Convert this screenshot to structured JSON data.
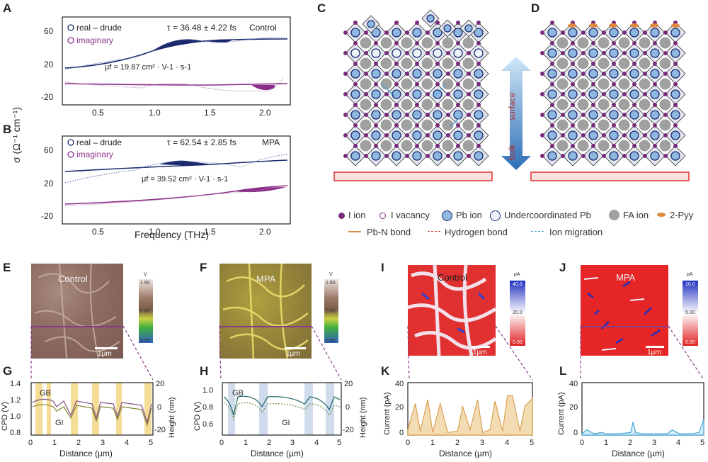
{
  "panels": {
    "A": {
      "letter": "A",
      "legend_real": "real – drude",
      "legend_imag": "imaginary",
      "tau": "τ = 36.48 ± 4.22 fs",
      "label": "Control",
      "mu": "μf = 19.87 cm² · V-1 · s-1",
      "y_ticks": [
        "60",
        "20",
        "-20"
      ]
    },
    "B": {
      "letter": "B",
      "legend_real": "real – drude",
      "legend_imag": "imaginary",
      "tau": "τ = 62.54 ± 2.85 fs",
      "label": "MPA",
      "mu": "μf = 39.52 cm² · V-1 · s-1",
      "y_ticks": [
        "60",
        "20",
        "-20"
      ],
      "x_ticks": [
        "0.5",
        "1.0",
        "1.5",
        "2.0"
      ]
    },
    "AB_axes": {
      "ylabel": "σ (Ω⁻¹ cm⁻¹)",
      "xlabel": "Frequency (THz)",
      "x_ticks": [
        "0.5",
        "1.0",
        "1.5",
        "2.0"
      ]
    },
    "C": {
      "letter": "C",
      "arrow_top": "surface",
      "arrow_bottom": "bulk"
    },
    "D": {
      "letter": "D"
    },
    "legend": {
      "items": [
        {
          "key": "i-ion",
          "text": "I ion",
          "color": "#7a2a7a"
        },
        {
          "key": "i-vacancy",
          "text": "I vacancy",
          "color": "#7a2a7a"
        },
        {
          "key": "pb-ion",
          "text": "Pb ion",
          "color": "#8fb8e0"
        },
        {
          "key": "under-pb",
          "text": "Undercoordinated Pb",
          "color": "#dfeaf5"
        },
        {
          "key": "fa-ion",
          "text": "FA ion",
          "color": "#a0a0a0"
        },
        {
          "key": "2pyy",
          "text": "2-Pyy",
          "color": "#e08a40"
        }
      ],
      "bonds": [
        {
          "text": "Pb-N bond",
          "color": "#e08a40"
        },
        {
          "text": "Hydrogen bond",
          "color": "#d04040"
        },
        {
          "text": "Ion migration",
          "color": "#40a0d8"
        }
      ]
    },
    "E": {
      "letter": "E",
      "label": "Control",
      "cb_unit": "V",
      "cb_top": "1.60",
      "cb_mid": "0.80",
      "cb_bot": "0.00",
      "scale": "1µm"
    },
    "F": {
      "letter": "F",
      "label": "MPA",
      "cb_unit": "V",
      "cb_top": "1.60",
      "cb_mid": "0.80",
      "cb_bot": "0.00",
      "scale": "1µm"
    },
    "I": {
      "letter": "I",
      "label": "Control",
      "cb_unit": "pA",
      "cb_top": "40.0",
      "cb_mid": "20.0",
      "cb_bot": "0.00",
      "scale": "1µm"
    },
    "J": {
      "letter": "J",
      "label": "MPA",
      "cb_unit": "pA",
      "cb_top": "10.0",
      "cb_mid": "5.00",
      "cb_bot": "0.00",
      "scale": "1µm"
    },
    "G": {
      "letter": "G",
      "ylabel": "CPD (V)",
      "ylabel2": "Height (nm)",
      "xlabel": "Distance (µm)",
      "yl": [
        "1.4",
        "1.2",
        "1.0",
        "0.8"
      ],
      "yr": [
        "20",
        "0",
        "-20"
      ],
      "xt": [
        "0",
        "1",
        "2",
        "3",
        "4",
        "5"
      ],
      "gb": "GB",
      "gi": "GI"
    },
    "H": {
      "letter": "H",
      "ylabel": "CPD (V)",
      "ylabel2": "Height (nm)",
      "xlabel": "Distance (µm)",
      "yl": [
        "1.0",
        "0.8",
        "0.6"
      ],
      "yr": [
        "20",
        "0",
        "-20"
      ],
      "xt": [
        "0",
        "1",
        "2",
        "3",
        "4",
        "5"
      ],
      "gb": "GB",
      "gi": "GI"
    },
    "K": {
      "letter": "K",
      "ylabel": "Current (pA)",
      "xlabel": "Distance (µm)",
      "yl": [
        "40",
        "20",
        "0"
      ],
      "xt": [
        "0",
        "1",
        "2",
        "3",
        "4",
        "5"
      ]
    },
    "L": {
      "letter": "L",
      "ylabel": "Current (pA)",
      "xlabel": "Distance (µm)",
      "yl": [
        "40",
        "20",
        "0"
      ],
      "xt": [
        "0",
        "1",
        "2",
        "3",
        "4",
        "5"
      ]
    }
  },
  "chart_data": [
    {
      "type": "scatter",
      "name": "A",
      "xlim": [
        0.2,
        2.2
      ],
      "series": [
        {
          "name": "real – drude",
          "x": [
            0.25,
            0.5,
            0.75,
            1.0,
            1.15,
            1.3,
            1.5,
            1.65,
            1.75,
            2.0,
            2.15
          ],
          "y": [
            38,
            44,
            50,
            57,
            70,
            68,
            62,
            60,
            62,
            66,
            68
          ]
        },
        {
          "name": "imaginary",
          "x": [
            0.25,
            0.5,
            0.75,
            1.0,
            1.25,
            1.5,
            1.7,
            1.85,
            2.0,
            2.15
          ],
          "y": [
            -5,
            -8,
            -7,
            -10,
            -7,
            -6,
            -8,
            -12,
            -14,
            -4
          ]
        }
      ]
    },
    {
      "type": "scatter",
      "name": "B",
      "xlim": [
        0.2,
        2.2
      ],
      "series": [
        {
          "name": "real – drude",
          "x": [
            0.25,
            0.5,
            0.75,
            1.0,
            1.2,
            1.4,
            1.6,
            1.8,
            2.0,
            2.15
          ],
          "y": [
            40,
            48,
            52,
            56,
            62,
            60,
            60,
            64,
            70,
            74
          ]
        },
        {
          "name": "imaginary",
          "x": [
            0.25,
            0.5,
            0.75,
            1.0,
            1.25,
            1.5,
            1.7,
            1.85,
            2.0,
            2.15
          ],
          "y": [
            -6,
            -6,
            -4,
            -2,
            0,
            2,
            4,
            5,
            6,
            6
          ]
        }
      ]
    },
    {
      "type": "line",
      "name": "K",
      "x": [
        0,
        0.3,
        0.5,
        0.8,
        1.0,
        1.3,
        1.6,
        2.0,
        2.2,
        2.5,
        2.8,
        3.0,
        3.3,
        3.5,
        3.8,
        4.0,
        4.2,
        4.5,
        4.7,
        5.0
      ],
      "y": [
        4,
        24,
        3,
        27,
        2,
        24,
        2,
        3,
        22,
        4,
        27,
        2,
        4,
        26,
        3,
        30,
        30,
        3,
        22,
        28
      ]
    },
    {
      "type": "line",
      "name": "L",
      "x": [
        0,
        0.2,
        0.5,
        0.8,
        1.0,
        1.5,
        2.0,
        2.1,
        2.2,
        2.5,
        3.0,
        3.5,
        3.7,
        4.0,
        4.5,
        4.8,
        5.0
      ],
      "y": [
        1,
        4,
        1,
        2,
        1,
        1,
        2,
        10,
        2,
        1,
        1,
        1,
        4,
        1,
        1,
        2,
        12
      ]
    }
  ]
}
